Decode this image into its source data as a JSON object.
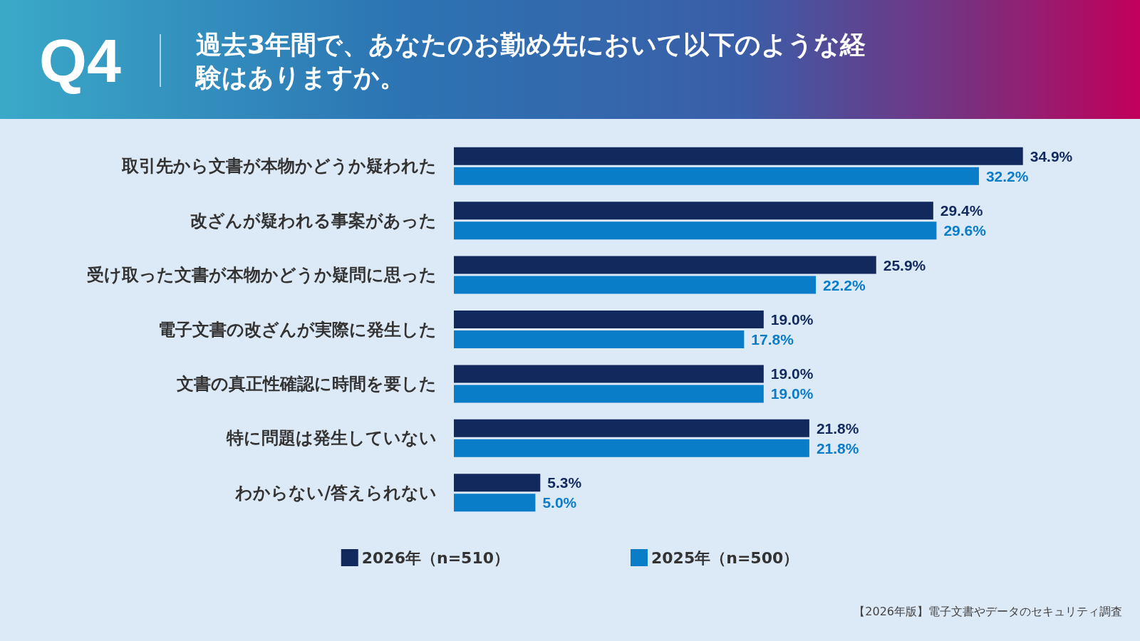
{
  "chart_data": {
    "type": "bar",
    "orientation": "horizontal",
    "title": "Q4",
    "subtitle": "過去3年間で、あなたのお勤め先において以下のような経験はありますか。",
    "categories": [
      "取引先から文書が本物かどうか疑われた",
      "改ざんが疑われる事案があった",
      "受け取った文書が本物かどうか疑問に思った",
      "電子文書の改ざんが実際に発生した",
      "文書の真正性確認に時間を要した",
      "特に問題は発生していない",
      "わからない/答えられない"
    ],
    "series": [
      {
        "name": "2026年（n=510）",
        "color": "#12295e",
        "values": [
          34.9,
          29.4,
          25.9,
          19.0,
          19.0,
          21.8,
          5.3
        ],
        "value_labels": [
          "34.9%",
          "29.4%",
          "25.9%",
          "19.0%",
          "19.0%",
          "21.8%",
          "5.3%"
        ]
      },
      {
        "name": "2025年（n=500）",
        "color": "#0a7dc9",
        "values": [
          32.2,
          29.6,
          22.2,
          17.8,
          19.0,
          21.8,
          5.0
        ],
        "value_labels": [
          "32.2%",
          "29.6%",
          "22.2%",
          "17.8%",
          "19.0%",
          "21.8%",
          "5.0%"
        ]
      }
    ],
    "legend": "bottom",
    "annotations": [
      "【2026年版】電子文書やデータのセキュリティ調査"
    ]
  }
}
